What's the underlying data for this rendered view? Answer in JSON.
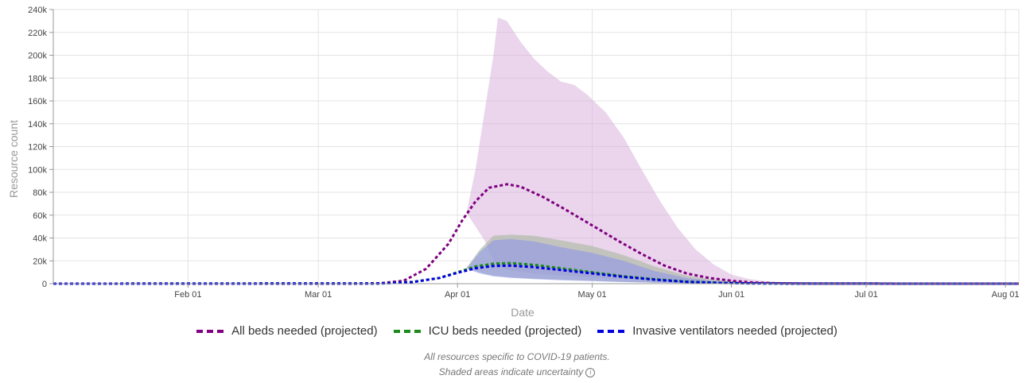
{
  "chart_data": {
    "type": "line",
    "xlabel": "Date",
    "ylabel": "Resource count",
    "xlim": [
      "2020-01-02",
      "2020-08-04"
    ],
    "ylim": [
      0,
      240000
    ],
    "y_ticks": [
      0,
      20000,
      40000,
      60000,
      80000,
      100000,
      120000,
      140000,
      160000,
      180000,
      200000,
      220000,
      240000
    ],
    "y_tick_labels": [
      "0",
      "20k",
      "40k",
      "60k",
      "80k",
      "100k",
      "120k",
      "140k",
      "160k",
      "180k",
      "200k",
      "220k",
      "240k"
    ],
    "x_ticks": [
      "2020-02-01",
      "2020-03-01",
      "2020-04-01",
      "2020-05-01",
      "2020-06-01",
      "2020-07-01",
      "2020-08-01"
    ],
    "x_tick_labels": [
      "Feb 01",
      "Mar 01",
      "Apr 01",
      "May 01",
      "Jun 01",
      "Jul 01",
      "Aug 01"
    ],
    "grid": true,
    "legend_position": "bottom",
    "series": [
      {
        "name": "All beds needed (projected)",
        "color": "#800080",
        "style": "dotted",
        "points": [
          [
            "2020-01-02",
            0
          ],
          [
            "2020-03-10",
            0
          ],
          [
            "2020-03-15",
            500
          ],
          [
            "2020-03-20",
            2500
          ],
          [
            "2020-03-25",
            13000
          ],
          [
            "2020-03-30",
            35000
          ],
          [
            "2020-04-02",
            55000
          ],
          [
            "2020-04-05",
            72000
          ],
          [
            "2020-04-08",
            84000
          ],
          [
            "2020-04-12",
            87000
          ],
          [
            "2020-04-15",
            85000
          ],
          [
            "2020-04-20",
            76000
          ],
          [
            "2020-04-25",
            65000
          ],
          [
            "2020-05-01",
            51000
          ],
          [
            "2020-05-07",
            37000
          ],
          [
            "2020-05-12",
            26000
          ],
          [
            "2020-05-17",
            16000
          ],
          [
            "2020-05-22",
            9000
          ],
          [
            "2020-05-27",
            5000
          ],
          [
            "2020-06-01",
            2500
          ],
          [
            "2020-06-06",
            1000
          ],
          [
            "2020-06-11",
            400
          ],
          [
            "2020-06-20",
            100
          ],
          [
            "2020-08-04",
            0
          ]
        ],
        "band_upper": [
          [
            "2020-04-03",
            62000
          ],
          [
            "2020-04-05",
            100000
          ],
          [
            "2020-04-07",
            150000
          ],
          [
            "2020-04-09",
            200000
          ],
          [
            "2020-04-10",
            233000
          ],
          [
            "2020-04-12",
            230000
          ],
          [
            "2020-04-15",
            212000
          ],
          [
            "2020-04-18",
            197000
          ],
          [
            "2020-04-21",
            186000
          ],
          [
            "2020-04-24",
            177000
          ],
          [
            "2020-04-27",
            174000
          ],
          [
            "2020-04-30",
            165000
          ],
          [
            "2020-05-04",
            150000
          ],
          [
            "2020-05-08",
            128000
          ],
          [
            "2020-05-12",
            100000
          ],
          [
            "2020-05-16",
            73000
          ],
          [
            "2020-05-20",
            49000
          ],
          [
            "2020-05-24",
            30000
          ],
          [
            "2020-05-28",
            17000
          ],
          [
            "2020-06-01",
            8000
          ],
          [
            "2020-06-05",
            4000
          ],
          [
            "2020-06-10",
            1500
          ],
          [
            "2020-06-20",
            300
          ]
        ],
        "band_lower": [
          [
            "2020-06-20",
            0
          ],
          [
            "2020-06-10",
            50
          ],
          [
            "2020-06-01",
            300
          ],
          [
            "2020-05-25",
            1000
          ],
          [
            "2020-05-18",
            2200
          ],
          [
            "2020-05-10",
            3800
          ],
          [
            "2020-05-01",
            5500
          ],
          [
            "2020-04-25",
            7000
          ],
          [
            "2020-04-18",
            9000
          ],
          [
            "2020-04-12",
            12000
          ],
          [
            "2020-04-09",
            20000
          ],
          [
            "2020-04-07",
            38000
          ],
          [
            "2020-04-05",
            50000
          ],
          [
            "2020-04-03",
            62000
          ]
        ]
      },
      {
        "name": "ICU beds needed (projected)",
        "color": "#1a8a1a",
        "style": "dotted",
        "points": [
          [
            "2020-01-02",
            0
          ],
          [
            "2020-03-15",
            200
          ],
          [
            "2020-03-22",
            1500
          ],
          [
            "2020-03-28",
            5000
          ],
          [
            "2020-04-01",
            10000
          ],
          [
            "2020-04-05",
            15000
          ],
          [
            "2020-04-09",
            17500
          ],
          [
            "2020-04-13",
            18000
          ],
          [
            "2020-04-18",
            16500
          ],
          [
            "2020-04-24",
            13500
          ],
          [
            "2020-05-01",
            10000
          ],
          [
            "2020-05-08",
            6500
          ],
          [
            "2020-05-15",
            3800
          ],
          [
            "2020-05-22",
            1800
          ],
          [
            "2020-05-29",
            800
          ],
          [
            "2020-06-05",
            300
          ],
          [
            "2020-06-15",
            50
          ],
          [
            "2020-08-04",
            0
          ]
        ],
        "band_upper": [
          [
            "2020-04-03",
            14000
          ],
          [
            "2020-04-06",
            30000
          ],
          [
            "2020-04-09",
            42000
          ],
          [
            "2020-04-13",
            43000
          ],
          [
            "2020-04-18",
            42000
          ],
          [
            "2020-04-24",
            38000
          ],
          [
            "2020-05-01",
            33000
          ],
          [
            "2020-05-08",
            25000
          ],
          [
            "2020-05-15",
            15000
          ],
          [
            "2020-05-22",
            7000
          ],
          [
            "2020-05-29",
            3000
          ],
          [
            "2020-06-05",
            1200
          ],
          [
            "2020-06-15",
            200
          ]
        ],
        "band_lower": [
          [
            "2020-06-15",
            0
          ],
          [
            "2020-06-05",
            50
          ],
          [
            "2020-05-29",
            150
          ],
          [
            "2020-05-22",
            400
          ],
          [
            "2020-05-15",
            900
          ],
          [
            "2020-05-08",
            1600
          ],
          [
            "2020-05-01",
            2500
          ],
          [
            "2020-04-24",
            3500
          ],
          [
            "2020-04-18",
            4500
          ],
          [
            "2020-04-13",
            5500
          ],
          [
            "2020-04-09",
            7000
          ],
          [
            "2020-04-06",
            10000
          ],
          [
            "2020-04-03",
            14000
          ]
        ]
      },
      {
        "name": "Invasive ventilators needed (projected)",
        "color": "#0000e0",
        "style": "dotted",
        "points": [
          [
            "2020-01-02",
            0
          ],
          [
            "2020-03-15",
            200
          ],
          [
            "2020-03-22",
            1400
          ],
          [
            "2020-03-28",
            5000
          ],
          [
            "2020-04-01",
            9500
          ],
          [
            "2020-04-05",
            13500
          ],
          [
            "2020-04-09",
            15500
          ],
          [
            "2020-04-13",
            15800
          ],
          [
            "2020-04-18",
            14500
          ],
          [
            "2020-04-24",
            12000
          ],
          [
            "2020-05-01",
            9000
          ],
          [
            "2020-05-08",
            6000
          ],
          [
            "2020-05-15",
            3500
          ],
          [
            "2020-05-22",
            1600
          ],
          [
            "2020-05-29",
            700
          ],
          [
            "2020-06-05",
            250
          ],
          [
            "2020-06-15",
            40
          ],
          [
            "2020-08-04",
            0
          ]
        ],
        "band_upper": [
          [
            "2020-04-03",
            13000
          ],
          [
            "2020-04-06",
            28000
          ],
          [
            "2020-04-09",
            38000
          ],
          [
            "2020-04-13",
            39000
          ],
          [
            "2020-04-18",
            37000
          ],
          [
            "2020-04-24",
            32000
          ],
          [
            "2020-05-01",
            27000
          ],
          [
            "2020-05-08",
            20000
          ],
          [
            "2020-05-15",
            11000
          ],
          [
            "2020-05-22",
            5000
          ],
          [
            "2020-05-29",
            2000
          ],
          [
            "2020-06-05",
            800
          ],
          [
            "2020-06-15",
            150
          ]
        ],
        "band_lower": [
          [
            "2020-06-15",
            0
          ],
          [
            "2020-06-05",
            40
          ],
          [
            "2020-05-29",
            120
          ],
          [
            "2020-05-22",
            350
          ],
          [
            "2020-05-15",
            800
          ],
          [
            "2020-05-08",
            1400
          ],
          [
            "2020-05-01",
            2200
          ],
          [
            "2020-04-24",
            3000
          ],
          [
            "2020-04-18",
            4000
          ],
          [
            "2020-04-13",
            5000
          ],
          [
            "2020-04-09",
            6500
          ],
          [
            "2020-04-06",
            9000
          ],
          [
            "2020-04-03",
            13000
          ]
        ]
      }
    ],
    "band_colors": {
      "All beds needed (projected)": "#d9b3dd",
      "ICU beds needed (projected)": "#a8b8a0",
      "Invasive ventilators needed (projected)": "#8f96e8"
    }
  },
  "legend": {
    "items": [
      {
        "label": "All beds needed (projected)",
        "color": "#800080"
      },
      {
        "label": "ICU beds needed (projected)",
        "color": "#1a8a1a"
      },
      {
        "label": "Invasive ventilators needed (projected)",
        "color": "#0000e0"
      }
    ]
  },
  "footnotes": {
    "line1": "All resources specific to COVID-19 patients.",
    "line2": "Shaded areas indicate uncertainty",
    "info_icon": "info-icon"
  }
}
